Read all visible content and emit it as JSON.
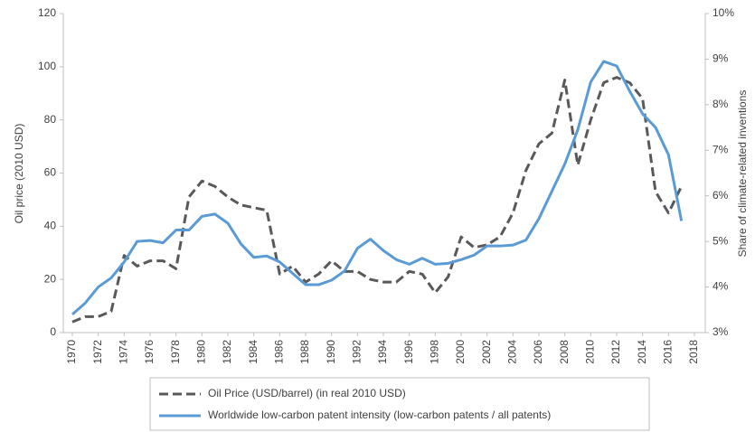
{
  "chart_data": {
    "type": "line",
    "ylabel": "Oil price  (2010 USD)",
    "y2label": "Share of climate-related inventions",
    "x": [
      1970,
      1971,
      1972,
      1973,
      1974,
      1975,
      1976,
      1977,
      1978,
      1979,
      1980,
      1981,
      1982,
      1983,
      1984,
      1985,
      1986,
      1987,
      1988,
      1989,
      1990,
      1991,
      1992,
      1993,
      1994,
      1995,
      1996,
      1997,
      1998,
      1999,
      2000,
      2001,
      2002,
      2003,
      2004,
      2005,
      2006,
      2007,
      2008,
      2009,
      2010,
      2011,
      2012,
      2013,
      2014,
      2015,
      2016,
      2017
    ],
    "series": [
      {
        "name": "Oil Price (USD/barrel) (in real 2010 USD)",
        "color": "#595959",
        "line_style": "dashed",
        "axis": "y",
        "values": [
          4,
          6,
          6,
          8,
          29,
          25,
          27,
          27,
          24,
          51,
          57,
          55,
          51,
          48,
          47,
          46,
          22,
          25,
          19,
          22,
          27,
          23,
          23,
          20,
          19,
          19,
          23,
          22,
          15,
          21,
          36,
          32,
          33,
          36,
          45,
          61,
          71,
          75,
          95,
          63,
          80,
          94,
          96,
          94,
          88,
          53,
          45,
          55
        ]
      },
      {
        "name": "Worldwide low-carbon patent intensity (low-carbon patents / all patents)",
        "color": "#5b9bd5",
        "line_style": "solid",
        "axis": "y2",
        "values": [
          3.4,
          3.65,
          4.0,
          4.2,
          4.55,
          5.0,
          5.02,
          4.97,
          5.25,
          5.25,
          5.55,
          5.6,
          5.4,
          4.95,
          4.65,
          4.68,
          4.55,
          4.3,
          4.05,
          4.05,
          4.15,
          4.35,
          4.85,
          5.05,
          4.8,
          4.6,
          4.5,
          4.63,
          4.5,
          4.52,
          4.6,
          4.7,
          4.9,
          4.9,
          4.92,
          5.03,
          5.5,
          6.1,
          6.7,
          7.45,
          8.5,
          8.95,
          8.85,
          8.3,
          7.8,
          7.5,
          6.9,
          5.45
        ]
      }
    ],
    "xlim": [
      1970,
      2018
    ],
    "xticks": [
      1970,
      1972,
      1974,
      1976,
      1978,
      1980,
      1982,
      1984,
      1986,
      1988,
      1990,
      1992,
      1994,
      1996,
      1998,
      2000,
      2002,
      2004,
      2006,
      2008,
      2010,
      2012,
      2014,
      2016,
      2018
    ],
    "ylim": [
      0,
      120
    ],
    "yticks": [
      0,
      20,
      40,
      60,
      80,
      100,
      120
    ],
    "y2lim": [
      3,
      10
    ],
    "y2ticks": [
      {
        "value": 3,
        "label": "3%"
      },
      {
        "value": 4,
        "label": "4%"
      },
      {
        "value": 5,
        "label": "5%"
      },
      {
        "value": 6,
        "label": "6%"
      },
      {
        "value": 7,
        "label": "7%"
      },
      {
        "value": 8,
        "label": "8%"
      },
      {
        "value": 9,
        "label": "9%"
      },
      {
        "value": 10,
        "label": "10%"
      }
    ],
    "grid": false,
    "legend": "bottom"
  }
}
